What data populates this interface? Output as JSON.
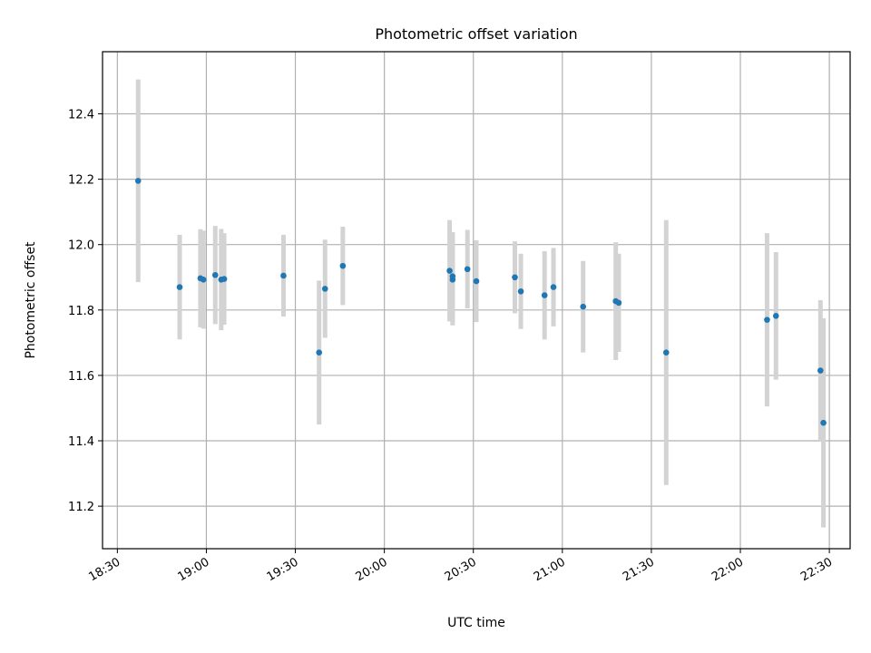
{
  "chart_data": {
    "type": "scatter",
    "title": "Photometric offset variation",
    "xlabel": "UTC time",
    "ylabel": "Photometric offset",
    "grid": true,
    "x_axis": {
      "kind": "time",
      "range": [
        "18:25",
        "22:37"
      ],
      "ticks": [
        "18:30",
        "19:00",
        "19:30",
        "20:00",
        "20:30",
        "21:00",
        "21:30",
        "22:00",
        "22:30"
      ]
    },
    "y_axis": {
      "range": [
        11.07,
        12.59
      ],
      "ticks": [
        11.2,
        11.4,
        11.6,
        11.8,
        12.0,
        12.2,
        12.4
      ]
    },
    "colors": {
      "point": "#1f77b4",
      "errorbar": "#d3d3d3",
      "grid": "#b0b0b0"
    },
    "points": [
      {
        "x": "18:37",
        "y": 12.195,
        "err": 0.31
      },
      {
        "x": "18:51",
        "y": 11.87,
        "err": 0.16
      },
      {
        "x": "18:58",
        "y": 11.897,
        "err": 0.15
      },
      {
        "x": "18:59",
        "y": 11.893,
        "err": 0.15
      },
      {
        "x": "19:03",
        "y": 11.907,
        "err": 0.15
      },
      {
        "x": "19:05",
        "y": 11.893,
        "err": 0.155
      },
      {
        "x": "19:06",
        "y": 11.895,
        "err": 0.14
      },
      {
        "x": "19:26",
        "y": 11.905,
        "err": 0.125
      },
      {
        "x": "19:38",
        "y": 11.67,
        "err": 0.22
      },
      {
        "x": "19:40",
        "y": 11.865,
        "err": 0.15
      },
      {
        "x": "19:46",
        "y": 11.935,
        "err": 0.12
      },
      {
        "x": "20:22",
        "y": 11.92,
        "err": 0.155
      },
      {
        "x": "20:23",
        "y": 11.893,
        "err": 0.14
      },
      {
        "x": "20:23",
        "y": 11.903,
        "err": 0.135
      },
      {
        "x": "20:28",
        "y": 11.925,
        "err": 0.12
      },
      {
        "x": "20:31",
        "y": 11.888,
        "err": 0.125
      },
      {
        "x": "20:44",
        "y": 11.9,
        "err": 0.11
      },
      {
        "x": "20:46",
        "y": 11.857,
        "err": 0.115
      },
      {
        "x": "20:54",
        "y": 11.845,
        "err": 0.135
      },
      {
        "x": "20:57",
        "y": 11.87,
        "err": 0.12
      },
      {
        "x": "21:07",
        "y": 11.81,
        "err": 0.14
      },
      {
        "x": "21:18",
        "y": 11.827,
        "err": 0.18
      },
      {
        "x": "21:19",
        "y": 11.822,
        "err": 0.15
      },
      {
        "x": "21:35",
        "y": 11.67,
        "err": 0.405
      },
      {
        "x": "22:09",
        "y": 11.77,
        "err": 0.265
      },
      {
        "x": "22:12",
        "y": 11.782,
        "err": 0.195
      },
      {
        "x": "22:27",
        "y": 11.615,
        "err": 0.215
      },
      {
        "x": "22:28",
        "y": 11.455,
        "err": 0.32
      }
    ]
  }
}
